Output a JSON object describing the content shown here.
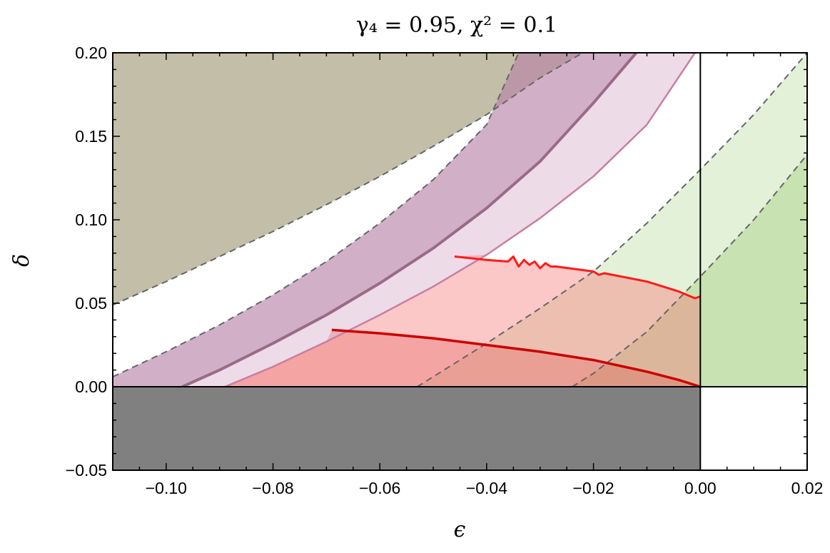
{
  "chart_data": {
    "type": "area",
    "title": "γ₄ = 0.95, χ² = 0.1",
    "xlabel": "ϵ",
    "ylabel": "δ",
    "xlim": [
      -0.11,
      0.02
    ],
    "ylim": [
      -0.05,
      0.2
    ],
    "grid": false,
    "x_ticks": [
      -0.1,
      -0.08,
      -0.06,
      -0.04,
      -0.02,
      0.0,
      0.02
    ],
    "x_tick_labels": [
      "−0.10",
      "−0.08",
      "−0.06",
      "−0.04",
      "−0.02",
      "0.00",
      "0.02"
    ],
    "y_ticks": [
      -0.05,
      0.0,
      0.05,
      0.1,
      0.15,
      0.2
    ],
    "y_tick_labels": [
      "−0.05",
      "0.00",
      "0.05",
      "0.10",
      "0.15",
      "0.20"
    ],
    "reference_lines": {
      "x": 0.0,
      "y": 0.0
    },
    "regions": [
      {
        "key": "olive",
        "fill": "#a79f7e",
        "opacity": 0.68,
        "upper_left_boundary": {
          "x": [
            -0.11,
            -0.1,
            -0.09,
            -0.08,
            -0.07,
            -0.06,
            -0.05,
            -0.04,
            -0.03,
            -0.022
          ],
          "y": [
            0.049,
            0.063,
            0.078,
            0.093,
            0.109,
            0.126,
            0.144,
            0.163,
            0.185,
            0.2
          ]
        }
      },
      {
        "key": "green",
        "fill": "#bcdca0",
        "opacity": 0.7,
        "lower_right_boundary": {
          "x": [
            -0.024,
            -0.02,
            -0.01,
            0.0,
            0.01,
            0.02
          ],
          "y": [
            0.0,
            0.008,
            0.033,
            0.066,
            0.1,
            0.139
          ]
        }
      },
      {
        "key": "light-green",
        "fill": "#bcdca0",
        "opacity": 0.4,
        "lower_right_boundary": {
          "x": [
            -0.053,
            -0.04,
            -0.03,
            -0.02,
            -0.01,
            0.0,
            0.01,
            0.02
          ],
          "y": [
            0.0,
            0.026,
            0.047,
            0.069,
            0.098,
            0.13,
            0.163,
            0.2
          ]
        }
      },
      {
        "key": "pink-band",
        "fill": "#cc99bb",
        "opacity": 0.35,
        "left_boundary": {
          "x": [
            -0.11,
            -0.1,
            -0.09,
            -0.08,
            -0.07,
            -0.06,
            -0.05,
            -0.04,
            -0.034
          ],
          "y": [
            0.006,
            0.021,
            0.037,
            0.055,
            0.075,
            0.098,
            0.124,
            0.157,
            0.2
          ]
        },
        "right_boundary": {
          "x": [
            -0.089,
            -0.08,
            -0.07,
            -0.06,
            -0.05,
            -0.04,
            -0.03,
            -0.02,
            -0.01,
            -0.001
          ],
          "y": [
            0.0,
            0.012,
            0.027,
            0.043,
            0.06,
            0.079,
            0.101,
            0.126,
            0.157,
            0.2
          ]
        }
      },
      {
        "key": "purple-band",
        "fill": "#b07da0",
        "opacity": 0.45,
        "left_boundary": {
          "x": [
            -0.11,
            -0.1,
            -0.09,
            -0.08,
            -0.07,
            -0.06,
            -0.05,
            -0.04,
            -0.034
          ],
          "y": [
            0.006,
            0.021,
            0.037,
            0.055,
            0.075,
            0.098,
            0.124,
            0.157,
            0.2
          ]
        },
        "right_boundary": {
          "x": [
            -0.097,
            -0.09,
            -0.08,
            -0.07,
            -0.06,
            -0.05,
            -0.04,
            -0.03,
            -0.02,
            -0.012
          ],
          "y": [
            0.0,
            0.01,
            0.026,
            0.043,
            0.062,
            0.083,
            0.107,
            0.135,
            0.17,
            0.2
          ]
        }
      },
      {
        "key": "red-light",
        "fill": "#f87a7a",
        "opacity": 0.42,
        "upper_boundary": {
          "x": [
            -0.046,
            -0.04,
            -0.036,
            -0.035,
            -0.034,
            -0.033,
            -0.032,
            -0.031,
            -0.03,
            -0.029,
            -0.028,
            -0.027,
            -0.02,
            -0.019,
            -0.018,
            -0.01,
            -0.004,
            -0.001,
            0.0
          ],
          "y": [
            0.078,
            0.076,
            0.075,
            0.078,
            0.072,
            0.076,
            0.073,
            0.075,
            0.071,
            0.074,
            0.072,
            0.072,
            0.069,
            0.067,
            0.068,
            0.063,
            0.057,
            0.053,
            0.054
          ]
        }
      },
      {
        "key": "red-dark",
        "fill": "#e34a4a",
        "opacity": 0.28,
        "upper_boundary": {
          "x": [
            -0.069,
            -0.06,
            -0.05,
            -0.04,
            -0.03,
            -0.02,
            -0.01,
            -0.004,
            0.0
          ],
          "y": [
            0.034,
            0.032,
            0.029,
            0.025,
            0.021,
            0.016,
            0.009,
            0.004,
            0.0
          ]
        }
      },
      {
        "key": "negative-delta",
        "fill": "#808080",
        "opacity": 1.0,
        "x_range": [
          -0.11,
          0.0
        ],
        "y_range": [
          -0.05,
          0.0
        ]
      }
    ],
    "curves": [
      {
        "key": "dashed-olive",
        "stroke": "#666666",
        "dash": "9,6",
        "width": 2,
        "x": [
          -0.11,
          -0.1,
          -0.09,
          -0.08,
          -0.07,
          -0.06,
          -0.05,
          -0.04,
          -0.03,
          -0.022
        ],
        "y": [
          0.049,
          0.063,
          0.078,
          0.093,
          0.109,
          0.126,
          0.144,
          0.163,
          0.185,
          0.2
        ]
      },
      {
        "key": "dashed-pink",
        "stroke": "#666666",
        "dash": "9,6",
        "width": 2,
        "x": [
          -0.11,
          -0.1,
          -0.09,
          -0.08,
          -0.07,
          -0.06,
          -0.05,
          -0.04,
          -0.034
        ],
        "y": [
          0.006,
          0.021,
          0.037,
          0.055,
          0.075,
          0.098,
          0.124,
          0.157,
          0.2
        ]
      },
      {
        "key": "dashed-light-green",
        "stroke": "#666666",
        "dash": "9,6",
        "width": 2,
        "x": [
          -0.053,
          -0.04,
          -0.03,
          -0.02,
          -0.01,
          0.0,
          0.01,
          0.02
        ],
        "y": [
          0.0,
          0.026,
          0.047,
          0.069,
          0.098,
          0.13,
          0.163,
          0.2
        ]
      },
      {
        "key": "dashed-green",
        "stroke": "#666666",
        "dash": "9,6",
        "width": 2,
        "x": [
          -0.024,
          -0.02,
          -0.01,
          0.0,
          0.01,
          0.02
        ],
        "y": [
          0.0,
          0.008,
          0.033,
          0.066,
          0.1,
          0.139
        ]
      },
      {
        "key": "purple-line",
        "stroke": "#9a6a88",
        "width": 4,
        "x": [
          -0.097,
          -0.09,
          -0.08,
          -0.07,
          -0.06,
          -0.05,
          -0.04,
          -0.03,
          -0.02,
          -0.012
        ],
        "y": [
          0.0,
          0.01,
          0.026,
          0.043,
          0.062,
          0.083,
          0.107,
          0.135,
          0.17,
          0.2
        ]
      },
      {
        "key": "pink-line",
        "stroke": "#c77fa3",
        "width": 2.5,
        "x": [
          -0.089,
          -0.08,
          -0.07,
          -0.06,
          -0.05,
          -0.04,
          -0.03,
          -0.02,
          -0.01,
          -0.001
        ],
        "y": [
          0.0,
          0.012,
          0.027,
          0.043,
          0.06,
          0.079,
          0.101,
          0.126,
          0.157,
          0.2
        ]
      },
      {
        "key": "red-light-line",
        "stroke": "#ff1a1a",
        "width": 3,
        "x": [
          -0.046,
          -0.04,
          -0.036,
          -0.035,
          -0.034,
          -0.033,
          -0.032,
          -0.031,
          -0.03,
          -0.029,
          -0.028,
          -0.027,
          -0.02,
          -0.019,
          -0.018,
          -0.01,
          -0.004,
          -0.001,
          0.0
        ],
        "y": [
          0.078,
          0.076,
          0.075,
          0.078,
          0.072,
          0.076,
          0.073,
          0.075,
          0.071,
          0.074,
          0.072,
          0.072,
          0.069,
          0.067,
          0.068,
          0.063,
          0.057,
          0.053,
          0.054
        ]
      },
      {
        "key": "red-dark-line",
        "stroke": "#cc0000",
        "width": 3.5,
        "x": [
          -0.069,
          -0.06,
          -0.05,
          -0.04,
          -0.03,
          -0.02,
          -0.01,
          -0.004,
          0.0
        ],
        "y": [
          0.034,
          0.032,
          0.029,
          0.025,
          0.021,
          0.016,
          0.009,
          0.004,
          0.0
        ]
      }
    ]
  }
}
